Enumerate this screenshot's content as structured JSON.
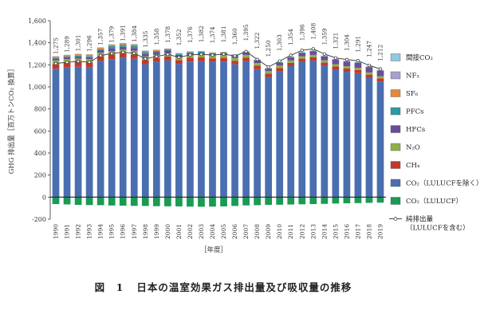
{
  "chart_data": {
    "type": "bar",
    "ylabel": "GHG 排出量［百万トンCO₂ 換算］",
    "xlabel": "［年度］",
    "yticks": [
      "1,600",
      "1,400",
      "1,200",
      "1,000",
      "800",
      "600",
      "400",
      "200",
      "0",
      "-200"
    ],
    "ylim": [
      -200,
      1600
    ],
    "grid": false,
    "legend_position": "right",
    "categories": [
      "1990",
      "1991",
      "1992",
      "1993",
      "1994",
      "1995",
      "1996",
      "1997",
      "1998",
      "1999",
      "2000",
      "2001",
      "2002",
      "2003",
      "2004",
      "2005",
      "2006",
      "2007",
      "2008",
      "2009",
      "2010",
      "2011",
      "2012",
      "2013",
      "2014",
      "2015",
      "2016",
      "2017",
      "2018",
      "2019"
    ],
    "total_labels": [
      "1,275",
      "1,289",
      "1,301",
      "1,296",
      "1,357",
      "1,379",
      "1,391",
      "1,384",
      "1,335",
      "1,358",
      "1,378",
      "1,352",
      "1,376",
      "1,382",
      "1,374",
      "1,381",
      "1,360",
      "1,395",
      "1,322",
      "1,250",
      "1,303",
      "1,354",
      "1,396",
      "1,408",
      "1,359",
      "1,321",
      "1,304",
      "1,291",
      "1,247",
      "1,212"
    ],
    "series": [
      {
        "name": "CO₂（LULUCFを除く）",
        "color": "#4a6fb0",
        "values": [
          1164,
          1175,
          1183,
          1178,
          1236,
          1252,
          1265,
          1255,
          1205,
          1226,
          1240,
          1208,
          1230,
          1233,
          1226,
          1230,
          1205,
          1234,
          1161,
          1090,
          1140,
          1188,
          1227,
          1239,
          1191,
          1156,
          1137,
          1124,
          1083,
          1049
        ]
      },
      {
        "name": "CH₄",
        "color": "#c0392b",
        "values": [
          44,
          44,
          43,
          43,
          42,
          41,
          40,
          39,
          38,
          37,
          36,
          35,
          34,
          34,
          33,
          33,
          32,
          31,
          31,
          30,
          30,
          30,
          29,
          29,
          29,
          29,
          29,
          28,
          28,
          28
        ]
      },
      {
        "name": "N₂O",
        "color": "#8fb04a",
        "values": [
          32,
          32,
          31,
          31,
          32,
          32,
          33,
          34,
          33,
          28,
          30,
          27,
          26,
          26,
          26,
          25,
          25,
          25,
          24,
          23,
          23,
          22,
          22,
          22,
          21,
          21,
          21,
          21,
          20,
          20
        ]
      },
      {
        "name": "HFCs",
        "color": "#6a4c9c",
        "values": [
          16,
          16,
          17,
          17,
          19,
          25,
          25,
          25,
          23,
          24,
          23,
          20,
          16,
          16,
          12,
          13,
          15,
          17,
          19,
          21,
          24,
          27,
          30,
          33,
          36,
          40,
          42,
          45,
          47,
          50
        ]
      },
      {
        "name": "PFCs",
        "color": "#2a9aa8",
        "values": [
          7,
          8,
          9,
          10,
          13,
          19,
          19,
          19,
          16,
          11,
          10,
          9,
          9,
          9,
          9,
          9,
          10,
          9,
          7,
          4,
          4,
          3,
          3,
          3,
          3,
          3,
          3,
          3,
          4,
          3
        ]
      },
      {
        "name": "SF₆",
        "color": "#e08a3c",
        "values": [
          13,
          14,
          15,
          15,
          14,
          15,
          14,
          14,
          12,
          9,
          7,
          6,
          5,
          5,
          5,
          5,
          5,
          5,
          4,
          2,
          2,
          2,
          2,
          2,
          2,
          2,
          2,
          2,
          2,
          2
        ]
      },
      {
        "name": "NF₃",
        "color": "#a4a0d0",
        "values": [
          1,
          1,
          1,
          1,
          1,
          1,
          1,
          1,
          1,
          1,
          1,
          1,
          1,
          1,
          1,
          1,
          1,
          1,
          1,
          1,
          1,
          1,
          1,
          1,
          1,
          1,
          1,
          1,
          1,
          1
        ]
      },
      {
        "name": "間接CO₂",
        "color": "#8fc8df",
        "values": [
          2,
          2,
          2,
          2,
          2,
          2,
          2,
          2,
          2,
          2,
          2,
          2,
          2,
          2,
          2,
          2,
          2,
          2,
          2,
          2,
          2,
          2,
          2,
          2,
          2,
          2,
          2,
          2,
          2,
          2
        ]
      }
    ],
    "lulucf": {
      "name": "CO₂（LULUCF）",
      "color": "#1a9a52",
      "values": [
        -63,
        -66,
        -70,
        -72,
        -73,
        -76,
        -77,
        -79,
        -80,
        -82,
        -83,
        -84,
        -86,
        -87,
        -86,
        -84,
        -80,
        -75,
        -73,
        -70,
        -69,
        -67,
        -65,
        -63,
        -61,
        -58,
        -56,
        -54,
        -52,
        -50
      ]
    },
    "net_line": {
      "name": "純排出量\n（LULUCFを含む）",
      "values": [
        1212,
        1223,
        1231,
        1224,
        1284,
        1303,
        1314,
        1305,
        1255,
        1276,
        1295,
        1268,
        1290,
        1295,
        1288,
        1297,
        1280,
        1320,
        1249,
        1180,
        1234,
        1287,
        1331,
        1345,
        1298,
        1263,
        1248,
        1237,
        1195,
        1162
      ]
    },
    "legend_order": [
      "間接CO₂",
      "NF₃",
      "SF₆",
      "PFCs",
      "HFCs",
      "N₂O",
      "CH₄",
      "CO₂（LULUCFを除く）",
      "CO₂（LULUCF）",
      "純排出量\n（LULUCFを含む）"
    ]
  },
  "caption": {
    "number": "図　1",
    "text": "日本の温室効果ガス排出量及び吸収量の推移"
  }
}
